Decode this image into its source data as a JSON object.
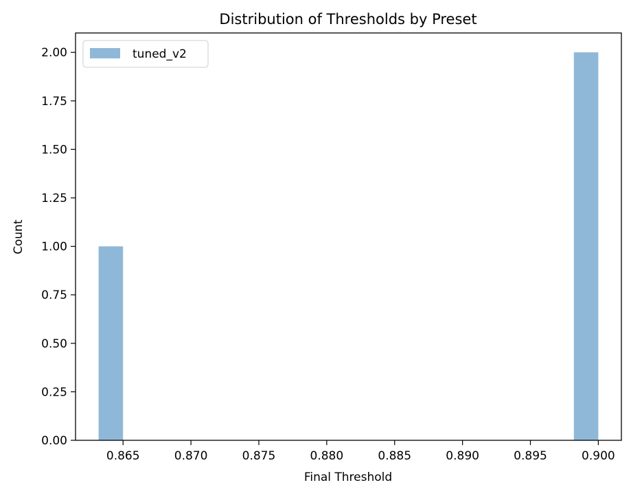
{
  "chart_data": {
    "type": "bar",
    "title": "Distribution of Thresholds by Preset",
    "xlabel": "Final Threshold",
    "ylabel": "Count",
    "xlim": [
      0.8615,
      0.9017
    ],
    "ylim": [
      0,
      2.1
    ],
    "x_ticks": [
      0.865,
      0.87,
      0.875,
      0.88,
      0.885,
      0.89,
      0.895,
      0.9
    ],
    "x_tick_labels": [
      "0.865",
      "0.870",
      "0.875",
      "0.880",
      "0.885",
      "0.890",
      "0.895",
      "0.900"
    ],
    "y_ticks": [
      0,
      0.25,
      0.5,
      0.75,
      1.0,
      1.25,
      1.5,
      1.75,
      2.0
    ],
    "y_tick_labels": [
      "0.00",
      "0.25",
      "0.50",
      "0.75",
      "1.00",
      "1.25",
      "1.50",
      "1.75",
      "2.00"
    ],
    "grid": false,
    "legend_position": "top-left",
    "series": [
      {
        "name": "tuned_v2",
        "color": "#8fb8d8",
        "bins": [
          {
            "x0": 0.8632,
            "x1": 0.865,
            "count": 1
          },
          {
            "x0": 0.8982,
            "x1": 0.9,
            "count": 2
          }
        ]
      }
    ]
  }
}
